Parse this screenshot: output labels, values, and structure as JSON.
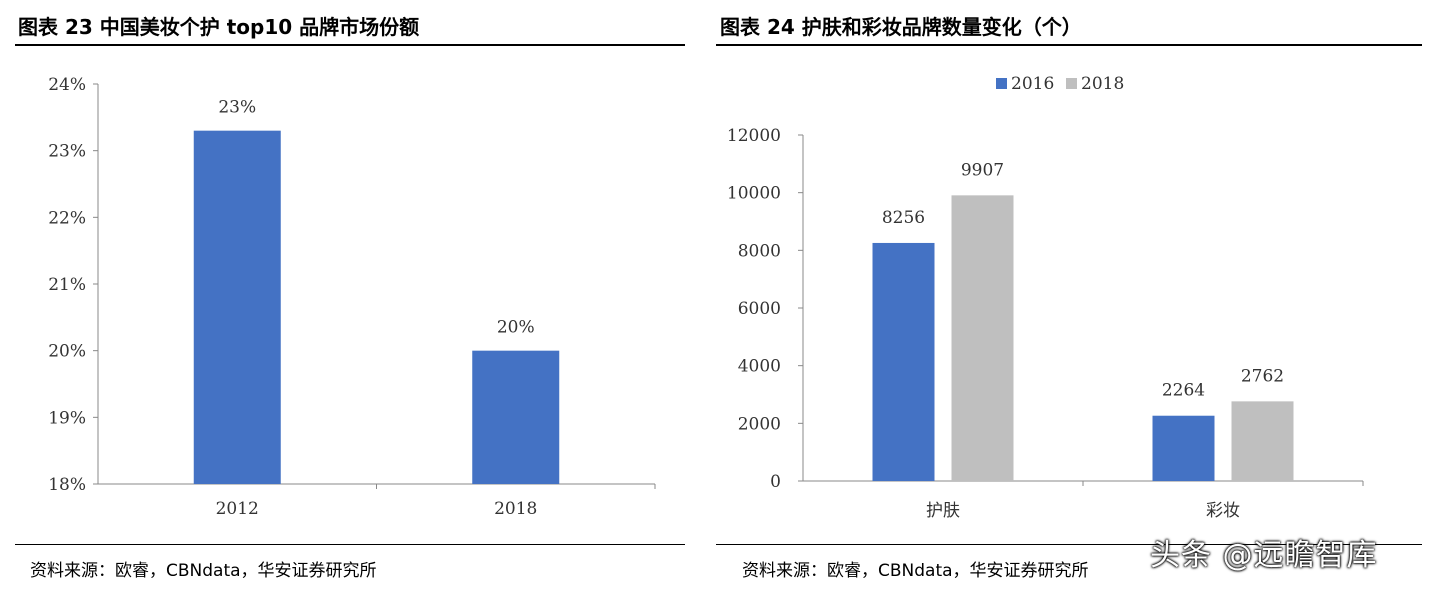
{
  "left_panel": {
    "title": "图表 23 中国美妆个护 top10 品牌市场份额",
    "source": "资料来源：欧睿，CBNdata，华安证券研究所"
  },
  "right_panel": {
    "title": "图表 24  护肤和彩妆品牌数量变化（个）",
    "source": "资料来源：欧睿，CBNdata，华安证券研究所"
  },
  "watermark": "头条 @远瞻智库",
  "colors": {
    "series_blue": "#4472C4",
    "series_gray": "#BFBFBF",
    "axis": "#888888"
  },
  "chart_data": [
    {
      "type": "bar",
      "categories": [
        "2012",
        "2018"
      ],
      "values": [
        23.3,
        20.0
      ],
      "data_labels": [
        "23%",
        "20%"
      ],
      "ylim": [
        18,
        24
      ],
      "yticks": [
        18,
        19,
        20,
        21,
        22,
        23,
        24
      ],
      "ytick_labels": [
        "18%",
        "19%",
        "20%",
        "21%",
        "22%",
        "23%",
        "24%"
      ],
      "grid": false,
      "legend": "none"
    },
    {
      "type": "bar",
      "categories": [
        "护肤",
        "彩妆"
      ],
      "series": [
        {
          "name": "2016",
          "values": [
            8256,
            2264
          ],
          "color": "#4472C4"
        },
        {
          "name": "2018",
          "values": [
            9907,
            2762
          ],
          "color": "#BFBFBF"
        }
      ],
      "ylim": [
        0,
        12000
      ],
      "yticks": [
        0,
        2000,
        4000,
        6000,
        8000,
        10000,
        12000
      ],
      "ytick_labels": [
        "0",
        "2000",
        "4000",
        "6000",
        "8000",
        "10000",
        "12000"
      ],
      "grid": false,
      "legend": "top-center"
    }
  ]
}
